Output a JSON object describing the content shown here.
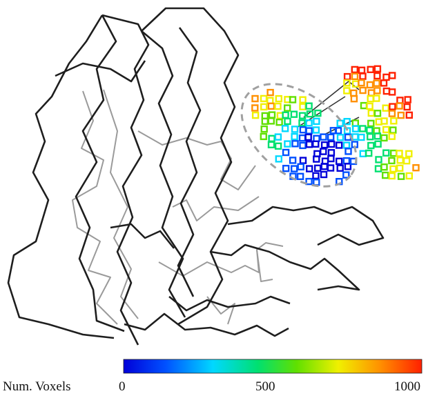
{
  "figure": {
    "colorbar": {
      "label": "Num.  Voxels",
      "ticks": [
        "0",
        "500",
        "1000"
      ],
      "min": 0,
      "max": 1000,
      "colors": [
        "#0000d8",
        "#0050ff",
        "#00d8ff",
        "#00e070",
        "#60e000",
        "#f0f000",
        "#ff9000",
        "#ff2000"
      ]
    },
    "backbone": {
      "dark_color": "#1e1e1e",
      "light_color": "#9a9a9a"
    },
    "pocket_outline_color": "#a0a0a0"
  }
}
